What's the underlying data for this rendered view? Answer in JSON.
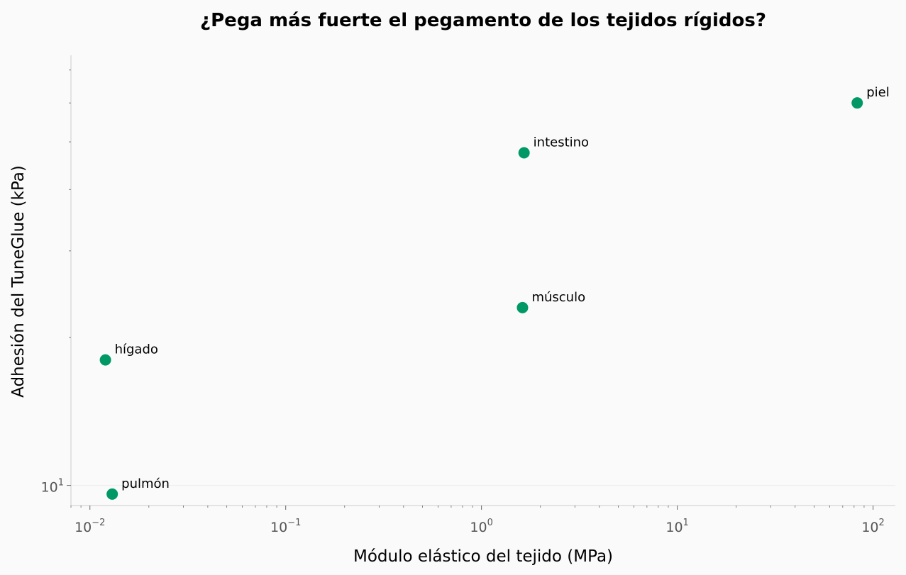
{
  "chart_data": {
    "type": "scatter",
    "title": "¿Pega más fuerte el pegamento de los tejidos rígidos?",
    "xlabel": "Módulo elástico del tejido (MPa)",
    "ylabel": "Adhesión del TuneGlue (kPa)",
    "xscale": "log",
    "yscale": "log",
    "xlim": [
      0.008,
      130
    ],
    "ylim": [
      9.1,
      75
    ],
    "x_ticks": [
      {
        "value": 0.01,
        "base": "10",
        "exp": "−2"
      },
      {
        "value": 0.1,
        "base": "10",
        "exp": "−1"
      },
      {
        "value": 1,
        "base": "10",
        "exp": "0"
      },
      {
        "value": 10,
        "base": "10",
        "exp": "1"
      },
      {
        "value": 100,
        "base": "10",
        "exp": "2"
      }
    ],
    "y_ticks": [
      {
        "value": 10,
        "base": "10",
        "exp": "1"
      }
    ],
    "grid": "horizontal at major y tick",
    "marker_color": "#009966",
    "points": [
      {
        "label": "piel",
        "x": 83,
        "y": 60
      },
      {
        "label": "intestino",
        "x": 1.65,
        "y": 47.5
      },
      {
        "label": "músculo",
        "x": 1.62,
        "y": 23
      },
      {
        "label": "hígado",
        "x": 0.012,
        "y": 18
      },
      {
        "label": "pulmón",
        "x": 0.013,
        "y": 9.6
      }
    ]
  }
}
